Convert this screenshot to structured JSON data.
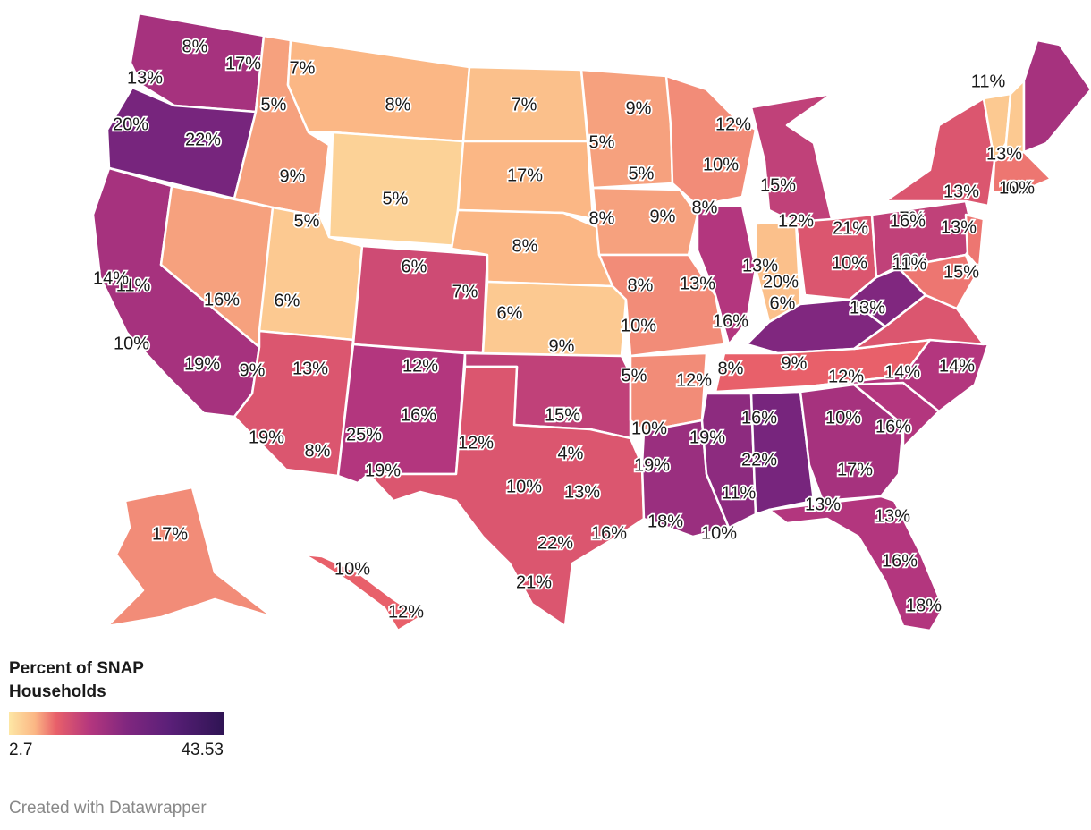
{
  "legend": {
    "title": "Percent of SNAP Households",
    "min_label": "2.7",
    "max_label": "43.53",
    "scale_min": 2.7,
    "scale_max": 43.53
  },
  "credit": "Created with Datawrapper",
  "regions": [
    {
      "name": "WA",
      "value": 17,
      "label": "17%"
    },
    {
      "name": "OR",
      "value": 22,
      "label": "22%"
    },
    {
      "name": "CA",
      "value": 17,
      "label": "17%"
    },
    {
      "name": "NV",
      "value": 9,
      "label": "9%"
    },
    {
      "name": "ID",
      "value": 9,
      "label": "9%"
    },
    {
      "name": "MT",
      "value": 8,
      "label": "8%"
    },
    {
      "name": "WY",
      "value": 5,
      "label": "5%"
    },
    {
      "name": "UT",
      "value": 6,
      "label": "6%"
    },
    {
      "name": "AZ",
      "value": 13,
      "label": "13%"
    },
    {
      "name": "CO",
      "value": 14,
      "label": "14%"
    },
    {
      "name": "NM",
      "value": 16,
      "label": "16%"
    },
    {
      "name": "ND",
      "value": 7,
      "label": "7%"
    },
    {
      "name": "SD",
      "value": 8,
      "label": "8%"
    },
    {
      "name": "NE",
      "value": 8,
      "label": "8%"
    },
    {
      "name": "KS",
      "value": 6,
      "label": "6%"
    },
    {
      "name": "OK",
      "value": 15,
      "label": "15%"
    },
    {
      "name": "TX",
      "value": 13,
      "label": "13%"
    },
    {
      "name": "MN",
      "value": 9,
      "label": "9%"
    },
    {
      "name": "IA",
      "value": 9,
      "label": "9%"
    },
    {
      "name": "MO",
      "value": 10,
      "label": "10%"
    },
    {
      "name": "AR",
      "value": 10,
      "label": "10%"
    },
    {
      "name": "LA",
      "value": 18,
      "label": "18%"
    },
    {
      "name": "WI",
      "value": 10,
      "label": "10%"
    },
    {
      "name": "IL",
      "value": 16,
      "label": "16%"
    },
    {
      "name": "MI",
      "value": 15,
      "label": "15%"
    },
    {
      "name": "IN",
      "value": 7,
      "label": "7%"
    },
    {
      "name": "OH",
      "value": 13,
      "label": "13%"
    },
    {
      "name": "KY",
      "value": 20,
      "label": "20%"
    },
    {
      "name": "TN",
      "value": 12,
      "label": "12%"
    },
    {
      "name": "MS",
      "value": 19,
      "label": "19%"
    },
    {
      "name": "AL",
      "value": 22,
      "label": "22%"
    },
    {
      "name": "GA",
      "value": 17,
      "label": "17%"
    },
    {
      "name": "FL",
      "value": 16,
      "label": "16%"
    },
    {
      "name": "SC",
      "value": 16,
      "label": "16%"
    },
    {
      "name": "NC",
      "value": 16,
      "label": "16%"
    },
    {
      "name": "VA",
      "value": 13,
      "label": "13%"
    },
    {
      "name": "WV",
      "value": 20,
      "label": "20%"
    },
    {
      "name": "PA",
      "value": 15,
      "label": "15%"
    },
    {
      "name": "NY",
      "value": 13,
      "label": "13%"
    },
    {
      "name": "VT",
      "value": 6,
      "label": "6%"
    },
    {
      "name": "NH",
      "value": 6,
      "label": "6%"
    },
    {
      "name": "ME",
      "value": 17,
      "label": "17%"
    },
    {
      "name": "MA",
      "value": 11,
      "label": "11%"
    },
    {
      "name": "NJ",
      "value": 11,
      "label": "11%"
    },
    {
      "name": "MD",
      "value": 11,
      "label": "11%"
    },
    {
      "name": "AK",
      "value": 10,
      "label": "10%"
    },
    {
      "name": "HI",
      "value": 12,
      "label": "12%"
    }
  ],
  "labels": [
    {
      "text": "8%",
      "value": 8
    },
    {
      "text": "17%",
      "value": 17
    },
    {
      "text": "13%",
      "value": 13
    },
    {
      "text": "20%",
      "value": 20
    },
    {
      "text": "22%",
      "value": 22
    },
    {
      "text": "7%",
      "value": 7
    },
    {
      "text": "5%",
      "value": 5
    },
    {
      "text": "8%",
      "value": 8
    },
    {
      "text": "7%",
      "value": 7
    },
    {
      "text": "9%",
      "value": 9
    },
    {
      "text": "9%",
      "value": 9
    },
    {
      "text": "5%",
      "value": 5
    },
    {
      "text": "8%",
      "value": 8
    },
    {
      "text": "5%",
      "value": 5
    },
    {
      "text": "17%",
      "value": 17
    },
    {
      "text": "9%",
      "value": 9
    },
    {
      "text": "5%",
      "value": 5
    },
    {
      "text": "8%",
      "value": 8
    },
    {
      "text": "9%",
      "value": 9
    },
    {
      "text": "8%",
      "value": 8
    },
    {
      "text": "12%",
      "value": 12
    },
    {
      "text": "10%",
      "value": 10
    },
    {
      "text": "8%",
      "value": 8
    },
    {
      "text": "5%",
      "value": 5
    },
    {
      "text": "11%",
      "value": 11
    },
    {
      "text": "6%",
      "value": 6
    },
    {
      "text": "16%",
      "value": 16
    },
    {
      "text": "6%",
      "value": 6
    },
    {
      "text": "7%",
      "value": 7
    },
    {
      "text": "14%",
      "value": 14
    },
    {
      "text": "6%",
      "value": 6
    },
    {
      "text": "8%",
      "value": 8
    },
    {
      "text": "13%",
      "value": 13
    },
    {
      "text": "10%",
      "value": 10
    },
    {
      "text": "10%",
      "value": 10
    },
    {
      "text": "19%",
      "value": 19
    },
    {
      "text": "9%",
      "value": 9
    },
    {
      "text": "13%",
      "value": 13
    },
    {
      "text": "20%",
      "value": 20
    },
    {
      "text": "10%",
      "value": 10
    },
    {
      "text": "15%",
      "value": 15
    },
    {
      "text": "16%",
      "value": 16
    },
    {
      "text": "12%",
      "value": 12
    },
    {
      "text": "9%",
      "value": 9
    },
    {
      "text": "19%",
      "value": 19
    },
    {
      "text": "8%",
      "value": 8
    },
    {
      "text": "25%",
      "value": 25
    },
    {
      "text": "16%",
      "value": 16
    },
    {
      "text": "19%",
      "value": 19
    },
    {
      "text": "12%",
      "value": 12
    },
    {
      "text": "4%",
      "value": 4
    },
    {
      "text": "13%",
      "value": 13
    },
    {
      "text": "10%",
      "value": 10
    },
    {
      "text": "10%",
      "value": 10
    },
    {
      "text": "5%",
      "value": 5
    },
    {
      "text": "15%",
      "value": 15
    },
    {
      "text": "16%",
      "value": 16
    },
    {
      "text": "22%",
      "value": 22
    },
    {
      "text": "21%",
      "value": 21
    },
    {
      "text": "18%",
      "value": 18
    },
    {
      "text": "10%",
      "value": 10
    },
    {
      "text": "19%",
      "value": 19
    },
    {
      "text": "19%",
      "value": 19
    },
    {
      "text": "12%",
      "value": 12
    },
    {
      "text": "8%",
      "value": 8
    },
    {
      "text": "9%",
      "value": 9
    },
    {
      "text": "12%",
      "value": 12
    },
    {
      "text": "14%",
      "value": 14
    },
    {
      "text": "16%",
      "value": 16
    },
    {
      "text": "14%",
      "value": 14
    },
    {
      "text": "10%",
      "value": 10
    },
    {
      "text": "16%",
      "value": 16
    },
    {
      "text": "22%",
      "value": 22
    },
    {
      "text": "11%",
      "value": 11
    },
    {
      "text": "17%",
      "value": 17
    },
    {
      "text": "13%",
      "value": 13
    },
    {
      "text": "13%",
      "value": 13
    },
    {
      "text": "16%",
      "value": 16
    },
    {
      "text": "18%",
      "value": 18
    },
    {
      "text": "15%",
      "value": 15
    },
    {
      "text": "12%",
      "value": 12
    },
    {
      "text": "21%",
      "value": 21
    },
    {
      "text": "7%",
      "value": 7
    },
    {
      "text": "6%",
      "value": 6
    },
    {
      "text": "13%",
      "value": 13
    },
    {
      "text": "20%",
      "value": 20
    },
    {
      "text": "13%",
      "value": 13
    },
    {
      "text": "10%",
      "value": 10
    },
    {
      "text": "11%",
      "value": 11
    },
    {
      "text": "15%",
      "value": 15
    },
    {
      "text": "16%",
      "value": 16
    },
    {
      "text": "13%",
      "value": 13
    },
    {
      "text": "13%",
      "value": 13
    },
    {
      "text": "13%",
      "value": 13
    },
    {
      "text": "6%",
      "value": 6
    },
    {
      "text": "11%",
      "value": 11
    },
    {
      "text": "17%",
      "value": 17
    },
    {
      "text": "10%",
      "value": 10
    },
    {
      "text": "10%",
      "value": 10
    },
    {
      "text": "12%",
      "value": 12
    }
  ]
}
